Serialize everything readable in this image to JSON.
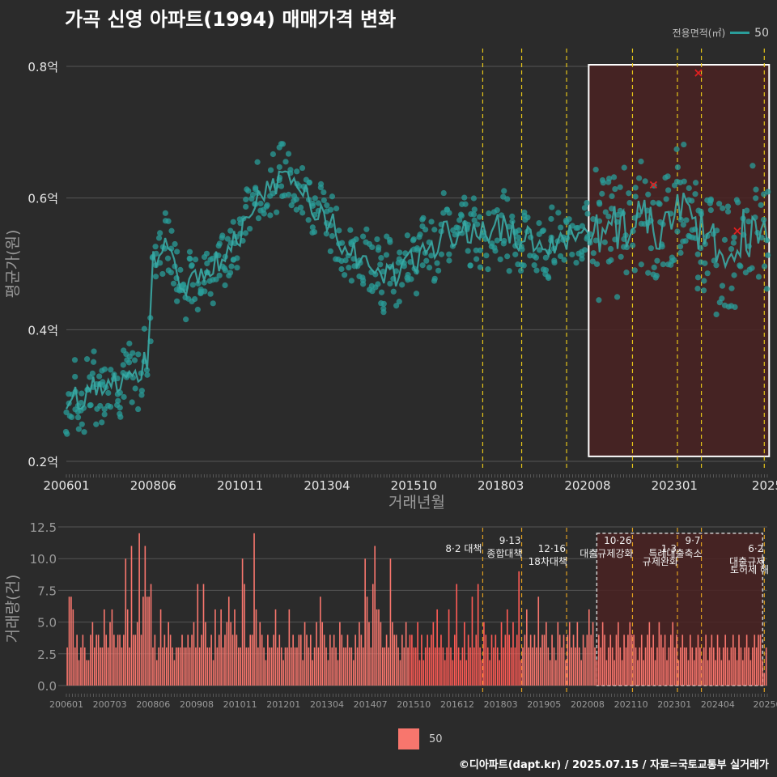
{
  "title": "가곡 신영 아파트(1994) 매매가격 변화",
  "credit": "©디아파트(dapt.kr) / 2025.07.15 / 자료=국토교통부 실거래가",
  "legend_top": {
    "title": "전용면적(㎡)",
    "label": "50"
  },
  "legend_bottom": {
    "label": "50"
  },
  "colors": {
    "background": "#2b2b2b",
    "line": "#2a9d9a",
    "point": "#2a9d9a",
    "bar": "#f8766d",
    "bar_highlight": "#ff5b55",
    "policy": "#e6c619",
    "highlight_fill": "#4a2222"
  },
  "chart_data": [
    {
      "type": "line",
      "name": "price",
      "title": "",
      "xlabel": "거래년월",
      "ylabel": "평균가(원)",
      "ylim": [
        0.2,
        0.8
      ],
      "y_ticks": [
        0.2,
        0.4,
        0.6,
        0.8
      ],
      "y_tick_labels": [
        "0.2억",
        "0.4억",
        "0.6억",
        "0.8억"
      ],
      "x_tick_labels": [
        "200601",
        "200806",
        "201011",
        "201304",
        "201510",
        "201803",
        "202008",
        "202301",
        "2025"
      ],
      "x_range": [
        "2006-01",
        "2025-07"
      ],
      "series": [
        {
          "name": "50",
          "anchors": [
            [
              "2006-01",
              0.28
            ],
            [
              "2006-06",
              0.3
            ],
            [
              "2007-01",
              0.32
            ],
            [
              "2007-06",
              0.33
            ],
            [
              "2008-01",
              0.33
            ],
            [
              "2008-04",
              0.36
            ],
            [
              "2008-06",
              0.5
            ],
            [
              "2008-10",
              0.55
            ],
            [
              "2009-03",
              0.47
            ],
            [
              "2009-06",
              0.48
            ],
            [
              "2010-01",
              0.5
            ],
            [
              "2010-06",
              0.52
            ],
            [
              "2010-11",
              0.55
            ],
            [
              "2011-06",
              0.61
            ],
            [
              "2011-12",
              0.63
            ],
            [
              "2012-06",
              0.62
            ],
            [
              "2012-12",
              0.59
            ],
            [
              "2013-04",
              0.57
            ],
            [
              "2013-10",
              0.52
            ],
            [
              "2014-06",
              0.5
            ],
            [
              "2014-12",
              0.48
            ],
            [
              "2015-06",
              0.49
            ],
            [
              "2015-10",
              0.51
            ],
            [
              "2016-06",
              0.54
            ],
            [
              "2017-01",
              0.55
            ],
            [
              "2017-08",
              0.56
            ],
            [
              "2018-03",
              0.55
            ],
            [
              "2018-09",
              0.54
            ],
            [
              "2019-06",
              0.52
            ],
            [
              "2019-12",
              0.54
            ],
            [
              "2020-08",
              0.55
            ],
            [
              "2021-06",
              0.56
            ],
            [
              "2022-01",
              0.57
            ],
            [
              "2022-06",
              0.55
            ],
            [
              "2023-01",
              0.58
            ],
            [
              "2023-06",
              0.56
            ],
            [
              "2024-01",
              0.54
            ],
            [
              "2024-06",
              0.53
            ],
            [
              "2025-01",
              0.55
            ],
            [
              "2025-07",
              0.55
            ]
          ]
        }
      ],
      "outliers": [
        [
          "2022-05",
          0.62
        ],
        [
          "2023-08",
          0.79
        ],
        [
          "2024-09",
          0.55
        ]
      ],
      "highlight_range": [
        "2020-09",
        "2025-06"
      ]
    },
    {
      "type": "bar",
      "name": "volume",
      "xlabel": "",
      "ylabel": "거래량(건)",
      "ylim": [
        0,
        12.5
      ],
      "y_ticks": [
        0,
        2.5,
        5,
        7.5,
        10,
        12.5
      ],
      "y_tick_labels": [
        "0.0",
        "2.5",
        "5.0",
        "7.5",
        "10.0",
        "12.5"
      ],
      "x_tick_labels": [
        "200601",
        "200703",
        "200806",
        "200908",
        "201011",
        "201201",
        "201304",
        "201407",
        "201510",
        "201612",
        "201803",
        "201905",
        "202008",
        "202110",
        "202301",
        "202404",
        "20250"
      ],
      "series": [
        {
          "name": "50",
          "values": [
            3,
            7,
            7,
            6,
            3,
            4,
            2,
            3,
            4,
            3,
            2,
            2,
            4,
            5,
            3,
            4,
            4,
            3,
            3,
            6,
            4,
            3,
            5,
            6,
            4,
            3,
            4,
            4,
            3,
            4,
            10,
            6,
            3,
            11,
            4,
            4,
            5,
            12,
            4,
            7,
            11,
            7,
            7,
            8,
            3,
            4,
            2,
            3,
            6,
            3,
            4,
            3,
            5,
            4,
            3,
            2,
            3,
            3,
            3,
            4,
            3,
            3,
            4,
            3,
            4,
            5,
            3,
            8,
            3,
            4,
            8,
            5,
            3,
            3,
            4,
            2,
            6,
            3,
            4,
            6,
            3,
            4,
            5,
            7,
            5,
            4,
            6,
            4,
            3,
            3,
            10,
            8,
            3,
            3,
            4,
            4,
            12,
            6,
            3,
            5,
            4,
            3,
            2,
            4,
            3,
            3,
            4,
            6,
            3,
            4,
            3,
            2,
            3,
            3,
            6,
            3,
            4,
            3,
            3,
            4,
            4,
            2,
            5,
            4,
            3,
            4,
            2,
            3,
            5,
            3,
            7,
            5,
            4,
            3,
            2,
            4,
            3,
            4,
            3,
            2,
            5,
            4,
            3,
            3,
            4,
            3,
            3,
            2,
            4,
            3,
            5,
            4,
            3,
            10,
            7,
            5,
            3,
            8,
            11,
            6,
            6,
            5,
            3,
            3,
            4,
            3,
            10,
            5,
            4,
            4,
            3,
            2,
            4,
            3,
            5,
            3,
            4,
            4,
            3,
            3,
            5,
            2,
            4,
            2,
            3,
            4,
            3,
            4,
            5,
            3,
            6,
            3,
            4,
            3,
            2,
            3,
            6,
            3,
            2,
            4,
            8,
            3,
            2,
            3,
            5,
            2,
            4,
            3,
            7,
            3,
            4,
            8,
            3,
            2,
            5,
            4,
            3,
            2,
            4,
            3,
            4,
            3,
            2,
            5,
            3,
            4,
            6,
            4,
            3,
            5,
            3,
            4,
            9,
            2,
            3,
            4,
            6,
            3,
            4,
            3,
            4,
            3,
            7,
            3,
            4,
            4,
            5,
            3,
            2,
            4,
            3,
            2,
            5,
            4,
            3,
            4,
            2,
            4,
            5,
            3,
            4,
            3,
            5,
            3,
            2,
            4,
            3,
            4,
            6,
            4,
            5,
            3,
            2,
            4,
            3,
            5,
            4,
            2,
            3,
            4,
            3,
            2,
            4,
            5,
            3,
            2,
            4,
            3,
            4,
            5,
            4,
            4,
            3,
            2,
            3,
            4,
            2,
            3,
            4,
            5,
            3,
            4,
            2,
            3,
            5,
            4,
            3,
            4,
            2,
            3,
            4,
            5,
            3,
            4,
            2,
            3,
            4,
            3,
            3,
            2,
            4,
            3,
            2,
            3,
            4,
            3,
            2,
            3,
            4,
            2,
            3,
            4,
            3,
            2,
            4,
            3,
            2,
            3,
            4,
            3,
            2,
            3,
            4,
            3,
            2,
            4,
            3,
            2,
            3,
            4,
            3,
            2,
            3,
            4,
            3,
            4,
            4,
            2,
            1,
            3
          ]
        }
      ],
      "highlight_range": [
        "2020-09",
        "2025-06"
      ],
      "policy_events": [
        {
          "date": "2017-08",
          "label1": "8·2 대책",
          "label2": ""
        },
        {
          "date": "2018-09",
          "label1": "9·13",
          "label2": "종합대책"
        },
        {
          "date": "2019-12",
          "label1": "12·16",
          "label2": "18차대책"
        },
        {
          "date": "2021-10",
          "label1": "10·26",
          "label2": "대출규제강화"
        },
        {
          "date": "2023-01",
          "label1": "1·3",
          "label2": "규제완화"
        },
        {
          "date": "2023-09",
          "label1": "9·7",
          "label2": "특례대출축소"
        },
        {
          "date": "2025-06",
          "label1": "6·2",
          "label2": "대출규제"
        }
      ],
      "policy_extra_label": "토허제 해"
    }
  ]
}
